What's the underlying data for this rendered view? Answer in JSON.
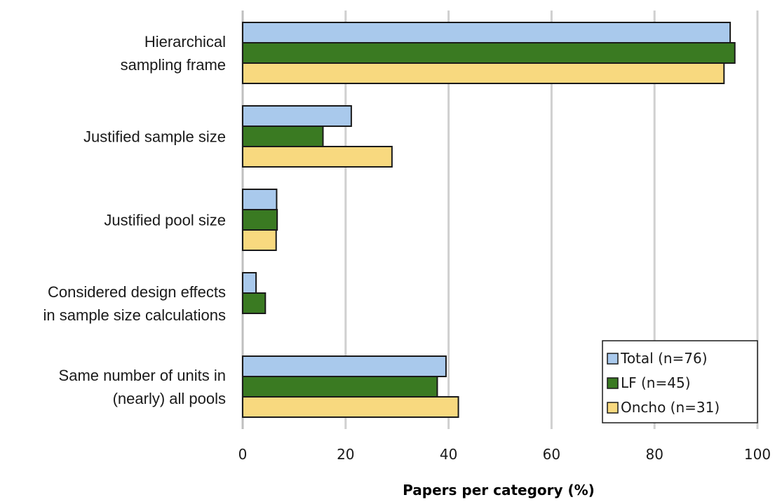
{
  "chart_data": {
    "type": "bar",
    "orientation": "horizontal",
    "title": "",
    "xlabel": "Papers per category (%)",
    "ylabel": "",
    "xlim": [
      0,
      100
    ],
    "xticks": [
      "0",
      "20",
      "40",
      "60",
      "80",
      "100"
    ],
    "grid": "vertical gridlines",
    "legend_position": "bottom-right",
    "categories": [
      [
        "Hierarchical",
        "sampling frame"
      ],
      [
        "Justified sample size"
      ],
      [
        "Justified pool size"
      ],
      [
        "Considered design effects",
        "in sample size calculations"
      ],
      [
        "Same number of units in",
        "(nearly) all pools"
      ]
    ],
    "series": [
      {
        "name": "Total (n=76)",
        "color": "#a9c9ec",
        "values": [
          94.7,
          21.1,
          6.6,
          2.6,
          39.5
        ]
      },
      {
        "name": "LF (n=45)",
        "color": "#3a7a22",
        "values": [
          95.6,
          15.6,
          6.7,
          4.4,
          37.8
        ]
      },
      {
        "name": "Oncho (n=31)",
        "color": "#f8d97f",
        "values": [
          93.5,
          29.0,
          6.5,
          0,
          41.9
        ]
      }
    ]
  }
}
